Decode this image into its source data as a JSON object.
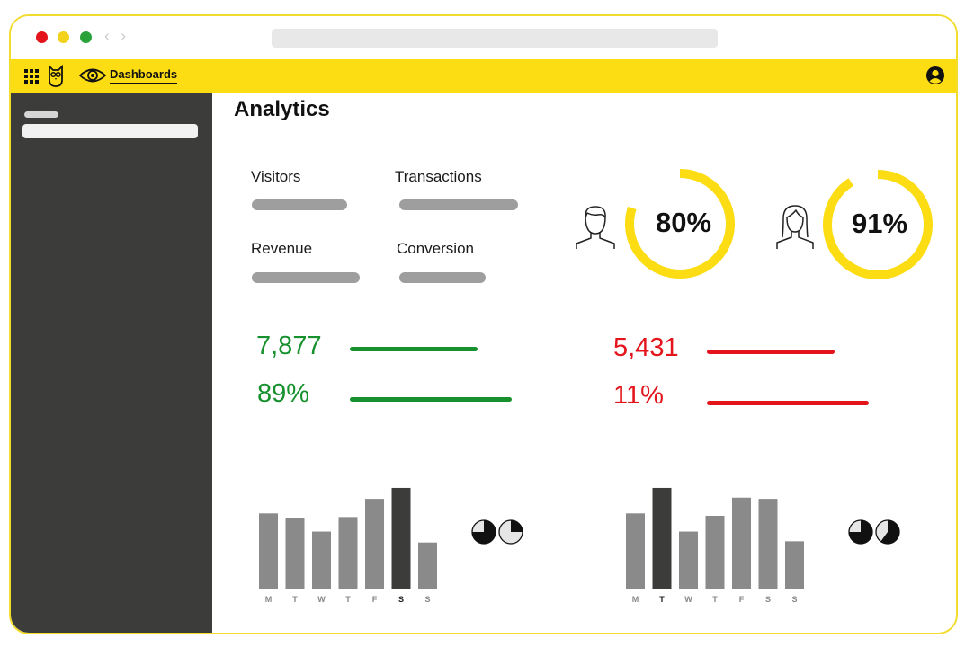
{
  "browser": {
    "nav_arrows": "‹ ›"
  },
  "topbar": {
    "nav_label": "Dashboards",
    "icons": [
      "apps-grid-icon",
      "owl-logo-icon",
      "eye-icon",
      "account-icon"
    ],
    "color": "#fcdc13"
  },
  "main": {
    "title": "Analytics",
    "metrics": [
      {
        "label": "Visitors"
      },
      {
        "label": "Transactions"
      },
      {
        "label": "Revenue"
      },
      {
        "label": "Conversion"
      }
    ],
    "gauges": [
      {
        "icon": "male-user-icon",
        "value": 80,
        "label": "80%"
      },
      {
        "icon": "female-user-icon",
        "value": 91,
        "label": "91%"
      }
    ],
    "stats_left": {
      "value1": "7,877",
      "value2": "89%",
      "color": "#17912d"
    },
    "stats_right": {
      "value1": "5,431",
      "value2": "11%",
      "color": "#e3141b"
    }
  },
  "chart_data": [
    {
      "type": "bar",
      "categories": [
        "M",
        "T",
        "W",
        "T",
        "F",
        "S",
        "S"
      ],
      "values": [
        62,
        58,
        47,
        59,
        74,
        83,
        38
      ],
      "highlight_index": 5,
      "ylim": [
        0,
        100
      ]
    },
    {
      "type": "bar",
      "categories": [
        "M",
        "T",
        "W",
        "T",
        "F",
        "S",
        "S"
      ],
      "values": [
        62,
        83,
        47,
        60,
        75,
        74,
        39
      ],
      "highlight_index": 1,
      "ylim": [
        0,
        100
      ]
    }
  ],
  "mini_pies": [
    [
      {
        "fraction": 0.75
      },
      {
        "fraction": 0.25
      }
    ],
    [
      {
        "fraction": 0.75
      },
      {
        "fraction": 0.6
      }
    ]
  ]
}
